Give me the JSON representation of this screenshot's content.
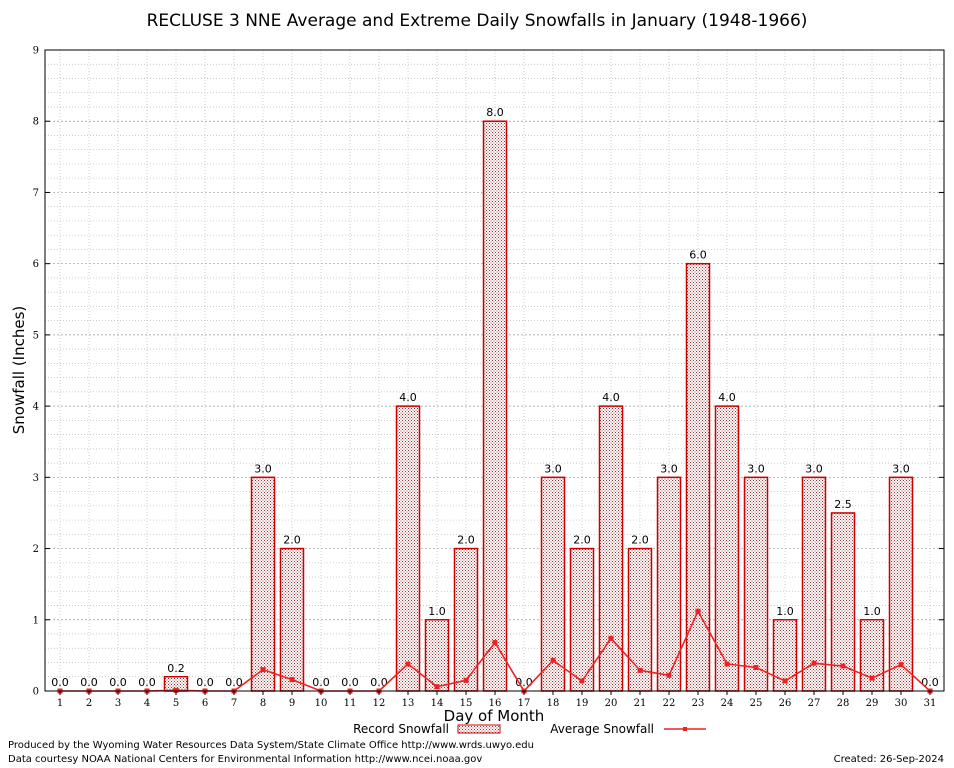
{
  "footer": {
    "produced_by": "Produced by the Wyoming Water Resources Data System/State Climate Office http://www.wrds.uwyo.edu",
    "courtesy": "Data courtesy NOAA National Centers for Environmental Information http://www.ncei.noaa.gov",
    "created": "Created:  26-Sep-2024"
  },
  "colors": {
    "bar_fill": "#c9a3a3",
    "bar_stroke": "#cc0000",
    "line": "#ee2222",
    "grid": "#aaaaaa"
  },
  "chart_data": {
    "type": "bar",
    "title": "RECLUSE 3 NNE Average and Extreme Daily Snowfalls in January (1948-1966)",
    "xlabel": "Day of Month",
    "ylabel": "Snowfall (Inches)",
    "ylim": [
      0,
      9
    ],
    "yticks": [
      "0",
      "1",
      "2",
      "3",
      "4",
      "5",
      "6",
      "7",
      "8",
      "9"
    ],
    "grid": true,
    "legend_position": "bottom-center",
    "categories": [
      "1",
      "2",
      "3",
      "4",
      "5",
      "6",
      "7",
      "8",
      "9",
      "10",
      "11",
      "12",
      "13",
      "14",
      "15",
      "16",
      "17",
      "18",
      "19",
      "20",
      "21",
      "22",
      "23",
      "24",
      "25",
      "26",
      "27",
      "28",
      "29",
      "30",
      "31"
    ],
    "series": [
      {
        "name": "Record Snowfall",
        "kind": "bar",
        "values": [
          0,
          0,
          0,
          0,
          0.2,
          0,
          0,
          3,
          2,
          0,
          0,
          0,
          4,
          1,
          2,
          8,
          0,
          3,
          2,
          4,
          2,
          3,
          6,
          4,
          3,
          1,
          3,
          2.5,
          1,
          3,
          0
        ],
        "labels": [
          "0.0",
          "0.0",
          "0.0",
          "0.0",
          "0.2",
          "0.0",
          "0.0",
          "3.0",
          "2.0",
          "0.0",
          "0.0",
          "0.0",
          "4.0",
          "1.0",
          "2.0",
          "8.0",
          "0.0",
          "3.0",
          "2.0",
          "4.0",
          "2.0",
          "3.0",
          "6.0",
          "4.0",
          "3.0",
          "1.0",
          "3.0",
          "2.5",
          "1.0",
          "3.0",
          "0.0"
        ]
      },
      {
        "name": "Average Snowfall",
        "kind": "line",
        "values": [
          0,
          0,
          0,
          0,
          0.01,
          0,
          0,
          0.3,
          0.16,
          0,
          0,
          0,
          0.38,
          0.06,
          0.15,
          0.68,
          0,
          0.43,
          0.14,
          0.74,
          0.29,
          0.22,
          1.12,
          0.38,
          0.33,
          0.14,
          0.39,
          0.35,
          0.18,
          0.37,
          0
        ]
      }
    ]
  }
}
